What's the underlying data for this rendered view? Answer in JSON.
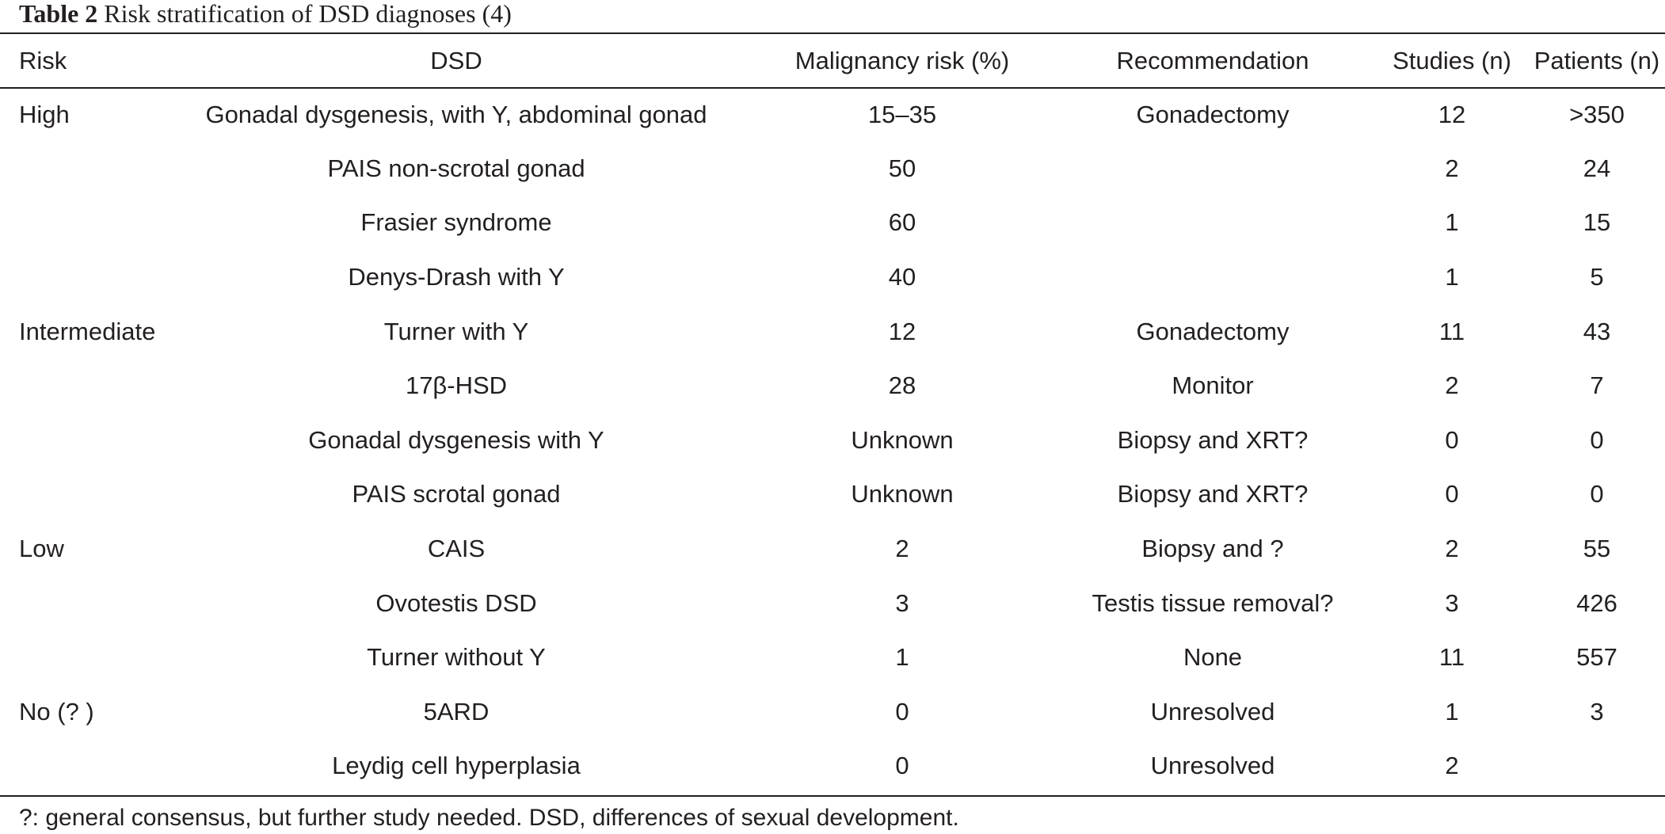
{
  "caption": {
    "label": "Table 2",
    "title": "Risk stratification of DSD diagnoses (4)"
  },
  "columns": [
    "Risk",
    "DSD",
    "Malignancy risk (%)",
    "Recommendation",
    "Studies (n)",
    "Patients (n)"
  ],
  "rows": [
    {
      "risk": "High",
      "dsd": "Gonadal dysgenesis, with Y, abdominal gonad",
      "malignancy_risk": "15–35",
      "recommendation": "Gonadectomy",
      "studies": "12",
      "patients": ">350"
    },
    {
      "risk": "",
      "dsd": "PAIS non-scrotal gonad",
      "malignancy_risk": "50",
      "recommendation": "",
      "studies": "2",
      "patients": "24"
    },
    {
      "risk": "",
      "dsd": "Frasier syndrome",
      "malignancy_risk": "60",
      "recommendation": "",
      "studies": "1",
      "patients": "15"
    },
    {
      "risk": "",
      "dsd": "Denys-Drash with Y",
      "malignancy_risk": "40",
      "recommendation": "",
      "studies": "1",
      "patients": "5"
    },
    {
      "risk": "Intermediate",
      "dsd": "Turner with Y",
      "malignancy_risk": "12",
      "recommendation": "Gonadectomy",
      "studies": "11",
      "patients": "43"
    },
    {
      "risk": "",
      "dsd": "17β-HSD",
      "malignancy_risk": "28",
      "recommendation": "Monitor",
      "studies": "2",
      "patients": "7"
    },
    {
      "risk": "",
      "dsd": "Gonadal dysgenesis with Y",
      "malignancy_risk": "Unknown",
      "recommendation": "Biopsy and XRT?",
      "studies": "0",
      "patients": "0"
    },
    {
      "risk": "",
      "dsd": "PAIS scrotal gonad",
      "malignancy_risk": "Unknown",
      "recommendation": "Biopsy and XRT?",
      "studies": "0",
      "patients": "0"
    },
    {
      "risk": "Low",
      "dsd": "CAIS",
      "malignancy_risk": "2",
      "recommendation": "Biopsy and ?",
      "studies": "2",
      "patients": "55"
    },
    {
      "risk": "",
      "dsd": "Ovotestis DSD",
      "malignancy_risk": "3",
      "recommendation": "Testis tissue removal?",
      "studies": "3",
      "patients": "426"
    },
    {
      "risk": "",
      "dsd": "Turner without Y",
      "malignancy_risk": "1",
      "recommendation": "None",
      "studies": "11",
      "patients": "557"
    },
    {
      "risk": "No (? )",
      "dsd": "5ARD",
      "malignancy_risk": "0",
      "recommendation": "Unresolved",
      "studies": "1",
      "patients": "3"
    },
    {
      "risk": "",
      "dsd": "Leydig cell hyperplasia",
      "malignancy_risk": "0",
      "recommendation": "Unresolved",
      "studies": "2",
      "patients": ""
    }
  ],
  "footnote": "?: general consensus, but further study needed. DSD, differences of sexual development."
}
